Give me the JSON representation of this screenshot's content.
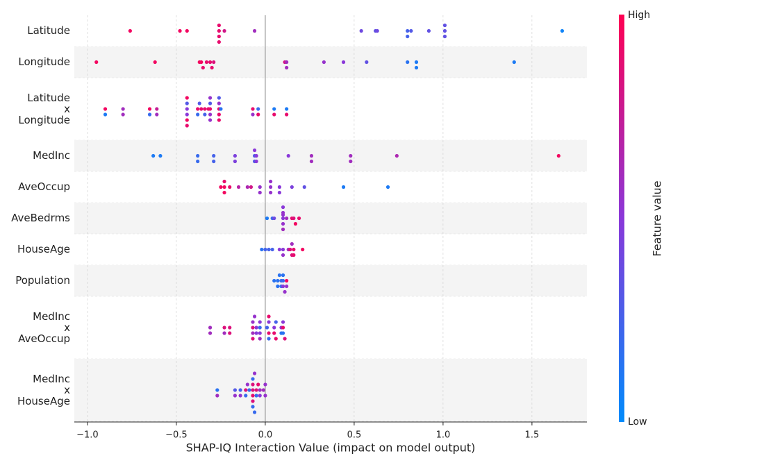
{
  "chart_data": {
    "type": "beeswarm",
    "xlabel": "SHAP-IQ Interaction Value (impact on model output)",
    "xlim": [
      -1.074,
      1.809
    ],
    "xticks": [
      {
        "value": -1.0,
        "label": "−1.0"
      },
      {
        "value": -0.5,
        "label": "−0.5"
      },
      {
        "value": 0.0,
        "label": "0.0"
      },
      {
        "value": 0.5,
        "label": "0.5"
      },
      {
        "value": 1.0,
        "label": "1.0"
      },
      {
        "value": 1.5,
        "label": "1.5"
      }
    ],
    "grid": true,
    "colormap": [
      "#008bfb",
      "#8a38d9",
      "#ff0052"
    ],
    "colorbar": {
      "label": "Feature value",
      "high": "High",
      "low": "Low"
    },
    "series": [
      {
        "name": "Latitude",
        "values": [
          -0.76,
          -0.48,
          -0.44,
          -0.26,
          -0.26,
          -0.26,
          -0.26,
          -0.23,
          -0.06,
          0.54,
          0.62,
          0.63,
          0.8,
          0.8,
          0.82,
          0.92,
          1.01,
          1.01,
          1.01,
          1.67
        ],
        "feature_values": [
          0.95,
          0.95,
          0.95,
          0.9,
          0.9,
          0.9,
          0.9,
          0.8,
          0.6,
          0.4,
          0.35,
          0.4,
          0.25,
          0.25,
          0.3,
          0.35,
          0.35,
          0.35,
          0.35,
          0.05
        ]
      },
      {
        "name": "Longitude",
        "values": [
          -0.95,
          -0.62,
          -0.37,
          -0.36,
          -0.35,
          -0.33,
          -0.31,
          -0.3,
          -0.29,
          0.11,
          0.12,
          0.12,
          0.33,
          0.44,
          0.57,
          0.8,
          0.85,
          0.85,
          1.4
        ],
        "feature_values": [
          0.95,
          0.95,
          0.95,
          0.95,
          0.9,
          0.9,
          0.9,
          0.9,
          0.85,
          0.8,
          0.6,
          0.6,
          0.55,
          0.5,
          0.35,
          0.15,
          0.1,
          0.1,
          0.1
        ]
      },
      {
        "name": "Latitude x Longitude",
        "values": [
          -0.9,
          -0.8,
          -0.65,
          -0.61,
          -0.44,
          -0.44,
          -0.38,
          -0.36,
          -0.34,
          -0.31,
          -0.32,
          -0.26,
          -0.25,
          -0.07,
          -0.04,
          0.05,
          0.12,
          -0.44,
          -0.44,
          -0.31,
          -0.31,
          -0.26,
          -0.26,
          -0.9,
          -0.8,
          -0.65,
          -0.61,
          -0.44,
          -0.38,
          -0.37,
          -0.34,
          -0.31,
          -0.26,
          -0.07,
          -0.04,
          0.05,
          0.12,
          -0.44,
          -0.31,
          -0.26
        ],
        "feature_values": [
          0.95,
          0.6,
          0.95,
          0.75,
          0.5,
          0.5,
          0.9,
          0.9,
          0.9,
          0.9,
          0.9,
          0.9,
          0.15,
          0.9,
          0.2,
          0.1,
          0.1,
          0.3,
          0.95,
          0.55,
          0.3,
          0.9,
          0.55,
          0.1,
          0.6,
          0.2,
          0.6,
          0.95,
          0.2,
          0.3,
          0.25,
          0.55,
          0.9,
          0.55,
          0.9,
          0.9,
          0.9,
          0.9,
          0.55,
          0.3
        ]
      },
      {
        "name": "MedInc",
        "values": [
          -0.63,
          -0.59,
          -0.38,
          -0.38,
          -0.29,
          -0.29,
          -0.17,
          -0.17,
          -0.06,
          -0.06,
          -0.06,
          -0.05,
          -0.05,
          0.13,
          0.26,
          0.26,
          0.48,
          0.48,
          0.74,
          1.65
        ],
        "feature_values": [
          0.1,
          0.1,
          0.2,
          0.2,
          0.25,
          0.25,
          0.45,
          0.45,
          0.3,
          0.3,
          0.5,
          0.5,
          0.5,
          0.5,
          0.6,
          0.6,
          0.6,
          0.6,
          0.65,
          0.95
        ]
      },
      {
        "name": "AveOccup",
        "values": [
          -0.23,
          -0.23,
          -0.25,
          -0.23,
          -0.2,
          -0.15,
          -0.1,
          -0.08,
          -0.03,
          -0.03,
          0.03,
          0.03,
          0.03,
          0.08,
          0.08,
          0.15,
          0.22,
          0.44,
          0.69
        ],
        "feature_values": [
          0.95,
          0.95,
          0.95,
          0.9,
          0.9,
          0.7,
          0.65,
          0.8,
          0.55,
          0.55,
          0.55,
          0.55,
          0.55,
          0.5,
          0.5,
          0.45,
          0.35,
          0.1,
          0.1
        ]
      },
      {
        "name": "AveBedrms",
        "values": [
          0.01,
          0.04,
          0.05,
          0.1,
          0.1,
          0.1,
          0.1,
          0.1,
          0.1,
          0.12,
          0.15,
          0.16,
          0.17,
          0.19
        ],
        "feature_values": [
          0.1,
          0.2,
          0.4,
          0.5,
          0.55,
          0.55,
          0.6,
          0.5,
          0.55,
          0.6,
          0.9,
          0.85,
          0.95,
          0.9
        ]
      },
      {
        "name": "HouseAge",
        "values": [
          -0.02,
          0.0,
          0.02,
          0.04,
          0.08,
          0.1,
          0.1,
          0.13,
          0.14,
          0.15,
          0.15,
          0.16,
          0.16,
          0.21
        ],
        "feature_values": [
          0.15,
          0.25,
          0.25,
          0.25,
          0.5,
          0.5,
          0.55,
          0.6,
          0.85,
          0.85,
          0.6,
          0.9,
          0.9,
          0.95
        ]
      },
      {
        "name": "Population",
        "values": [
          0.05,
          0.07,
          0.07,
          0.08,
          0.09,
          0.09,
          0.1,
          0.1,
          0.11,
          0.12,
          0.12,
          0.1
        ],
        "feature_values": [
          0.15,
          0.15,
          0.15,
          0.15,
          0.2,
          0.2,
          0.2,
          0.5,
          0.55,
          0.95,
          0.55,
          0.15
        ]
      },
      {
        "name": "MedInc x AveOccup",
        "values": [
          -0.31,
          -0.23,
          -0.2,
          -0.07,
          -0.07,
          -0.06,
          -0.05,
          -0.03,
          -0.03,
          0.02,
          0.01,
          0.02,
          0.05,
          0.06,
          0.09,
          0.1,
          0.11,
          -0.31,
          -0.23,
          -0.2,
          -0.07,
          -0.05,
          -0.03,
          0.02,
          0.05,
          0.06,
          0.09,
          0.1,
          0.1,
          -0.07,
          -0.03,
          0.02
        ],
        "feature_values": [
          0.6,
          0.85,
          0.85,
          0.85,
          0.6,
          0.55,
          0.5,
          0.2,
          0.5,
          0.9,
          0.25,
          0.5,
          0.5,
          0.25,
          0.55,
          0.9,
          0.85,
          0.6,
          0.6,
          0.85,
          0.55,
          0.5,
          0.5,
          0.2,
          0.9,
          0.9,
          0.15,
          0.15,
          0.5,
          0.85,
          0.6,
          0.9
        ]
      },
      {
        "name": "MedInc x HouseAge",
        "values": [
          -0.27,
          -0.17,
          -0.14,
          -0.11,
          -0.1,
          -0.07,
          -0.07,
          -0.07,
          -0.06,
          -0.05,
          -0.04,
          -0.03,
          -0.01,
          0.0,
          -0.07,
          -0.07,
          -0.27,
          -0.17,
          -0.14,
          -0.11,
          -0.09,
          -0.07,
          -0.06,
          -0.05,
          -0.03,
          0.0
        ],
        "feature_values": [
          0.15,
          0.3,
          0.25,
          0.85,
          0.55,
          0.85,
          0.9,
          0.85,
          0.55,
          0.85,
          0.9,
          0.6,
          0.6,
          0.55,
          0.85,
          0.2,
          0.6,
          0.55,
          0.55,
          0.2,
          0.2,
          0.2,
          0.2,
          0.2,
          0.5,
          0.55
        ]
      }
    ]
  }
}
